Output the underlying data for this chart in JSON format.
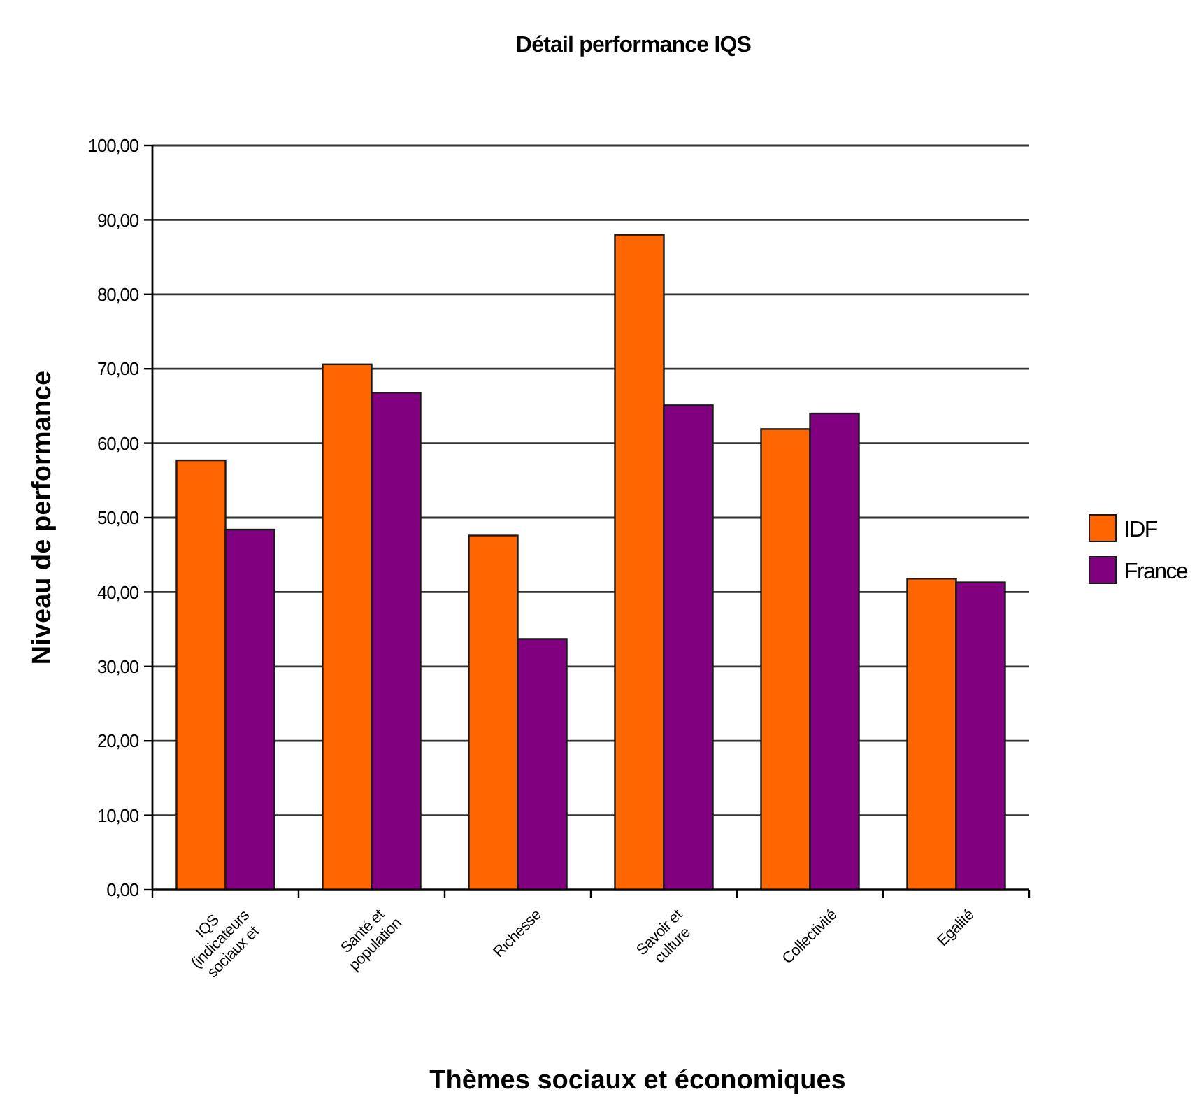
{
  "chart_data": {
    "type": "bar",
    "title": "Détail performance IQS",
    "xlabel": "Thèmes sociaux et économiques",
    "ylabel": "Niveau de performance",
    "categories": [
      "IQS (indicateurs sociaux et",
      "Santé et population",
      "Richesse",
      "Savoir et culture",
      "Collectivité",
      "Egalité"
    ],
    "series": [
      {
        "name": "IDF",
        "color": "#ff6600",
        "values": [
          57.7,
          70.6,
          47.6,
          88.0,
          61.9,
          41.8
        ]
      },
      {
        "name": "France",
        "color": "#800080",
        "values": [
          48.4,
          66.8,
          33.7,
          65.1,
          64.0,
          41.3
        ]
      }
    ],
    "ylim": [
      0,
      100
    ],
    "yticks": [
      {
        "value": 0,
        "label": "0,00"
      },
      {
        "value": 10,
        "label": "10,00"
      },
      {
        "value": 20,
        "label": "20,00"
      },
      {
        "value": 30,
        "label": "30,00"
      },
      {
        "value": 40,
        "label": "40,00"
      },
      {
        "value": 50,
        "label": "50,00"
      },
      {
        "value": 60,
        "label": "60,00"
      },
      {
        "value": 70,
        "label": "70,00"
      },
      {
        "value": 80,
        "label": "80,00"
      },
      {
        "value": 90,
        "label": "90,00"
      },
      {
        "value": 100,
        "label": "100,00"
      }
    ],
    "grid": "y",
    "legend": "right"
  }
}
